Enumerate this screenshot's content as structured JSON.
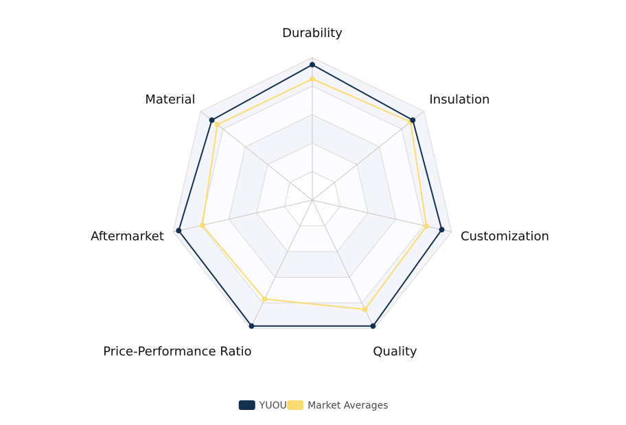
{
  "chart_data": {
    "type": "radar",
    "axes": [
      "Durability",
      "Insulation",
      "Customization",
      "Quality",
      "Price-Performance Ratio",
      "Aftermarket",
      "Material"
    ],
    "series": [
      {
        "name": "YUOU",
        "color": "#14304f",
        "values": [
          95,
          90,
          93,
          98,
          98,
          96,
          90
        ]
      },
      {
        "name": "Market Averages",
        "color": "#f9dc74",
        "values": [
          85,
          88,
          82,
          85,
          77,
          79,
          85
        ]
      }
    ],
    "rmax": 100,
    "rings": 5,
    "grid": true,
    "legend": "bottom"
  },
  "colors": {
    "grid_line": "#d9d9d9",
    "band_fill": "#f4f5fa",
    "band_fill_alt": "#fcfcfe",
    "axis_line": "#c8c8c8"
  }
}
